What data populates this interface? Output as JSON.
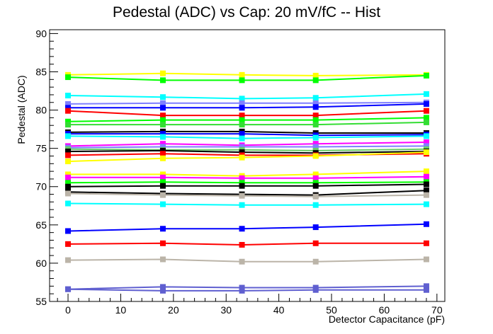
{
  "chart_data": {
    "type": "line",
    "title": "Pedestal (ADC) vs Cap: 20 mV/fC -- Hist",
    "xlabel": "Detector Capacitance (pF)",
    "ylabel": "Pedestal (ADC)",
    "xlim": [
      -3.5,
      71.5
    ],
    "ylim": [
      55,
      90.5
    ],
    "xticks": [
      0,
      10,
      20,
      30,
      40,
      50,
      60,
      70
    ],
    "yticks": [
      55,
      60,
      65,
      70,
      75,
      80,
      85,
      90
    ],
    "grid": false,
    "legend": "none",
    "marker": "square",
    "x": [
      0,
      18,
      33,
      47,
      68
    ],
    "series": [
      {
        "color": "#ffff00",
        "values": [
          84.6,
          84.8,
          84.6,
          84.5,
          84.6
        ]
      },
      {
        "color": "#00ff00",
        "values": [
          84.3,
          83.9,
          83.9,
          83.9,
          84.5
        ]
      },
      {
        "color": "#00ffff",
        "values": [
          81.9,
          81.7,
          81.5,
          81.6,
          82.1
        ]
      },
      {
        "color": "#7f7fff",
        "values": [
          80.8,
          80.9,
          80.9,
          80.9,
          81.0
        ]
      },
      {
        "color": "#0000ff",
        "values": [
          80.3,
          80.3,
          80.3,
          80.4,
          80.8
        ]
      },
      {
        "color": "#ff0000",
        "values": [
          79.9,
          79.3,
          79.3,
          79.3,
          79.9
        ]
      },
      {
        "color": "#00ff00",
        "values": [
          78.5,
          78.7,
          78.7,
          78.7,
          79.0
        ]
      },
      {
        "color": "#33dd33",
        "values": [
          78.1,
          78.1,
          78.1,
          78.1,
          78.4
        ]
      },
      {
        "color": "#000000",
        "values": [
          77.1,
          77.2,
          77.2,
          77.0,
          77.0
        ]
      },
      {
        "color": "#0000ff",
        "values": [
          76.9,
          76.9,
          76.9,
          76.7,
          76.8
        ]
      },
      {
        "color": "#00ffff",
        "values": [
          76.6,
          76.5,
          76.3,
          76.4,
          76.6
        ]
      },
      {
        "color": "#ff00ff",
        "values": [
          75.3,
          75.6,
          75.4,
          75.6,
          75.8
        ]
      },
      {
        "color": "#7f7fff",
        "values": [
          75.1,
          75.2,
          75.2,
          75.2,
          75.3
        ]
      },
      {
        "color": "#66cc66",
        "values": [
          74.9,
          74.8,
          74.8,
          74.7,
          74.9
        ]
      },
      {
        "color": "#000000",
        "values": [
          74.6,
          74.7,
          74.5,
          74.4,
          74.6
        ]
      },
      {
        "color": "#ff0000",
        "values": [
          74.1,
          74.3,
          74.1,
          74.1,
          74.3
        ]
      },
      {
        "color": "#ffff00",
        "values": [
          73.3,
          73.7,
          73.8,
          74.0,
          74.5
        ]
      },
      {
        "color": "#ffff00",
        "values": [
          71.6,
          71.6,
          71.4,
          71.6,
          72.0
        ]
      },
      {
        "color": "#ff00ff",
        "values": [
          71.2,
          71.2,
          71.1,
          71.1,
          71.3
        ]
      },
      {
        "color": "#00ff00",
        "values": [
          70.5,
          70.6,
          70.5,
          70.5,
          70.6
        ]
      },
      {
        "color": "#000000",
        "values": [
          70.0,
          70.1,
          70.1,
          70.1,
          70.3
        ]
      },
      {
        "color": "#000000",
        "values": [
          69.3,
          69.1,
          69.0,
          68.9,
          69.5
        ]
      },
      {
        "color": "#bbb4a8",
        "values": [
          69.1,
          68.9,
          68.8,
          68.7,
          68.9
        ]
      },
      {
        "color": "#00ffff",
        "values": [
          67.8,
          67.7,
          67.6,
          67.6,
          67.7
        ]
      },
      {
        "color": "#0000ff",
        "values": [
          64.2,
          64.5,
          64.5,
          64.7,
          65.1
        ]
      },
      {
        "color": "#ff0000",
        "values": [
          62.5,
          62.6,
          62.4,
          62.6,
          62.6
        ]
      },
      {
        "color": "#bbb4a8",
        "values": [
          60.4,
          60.5,
          60.2,
          60.2,
          60.5
        ]
      },
      {
        "color": "#5f5fd0",
        "values": [
          56.6,
          56.9,
          56.8,
          56.8,
          57.0
        ]
      },
      {
        "color": "#5f5fd0",
        "values": [
          56.6,
          56.4,
          56.4,
          56.5,
          56.5
        ]
      }
    ]
  }
}
